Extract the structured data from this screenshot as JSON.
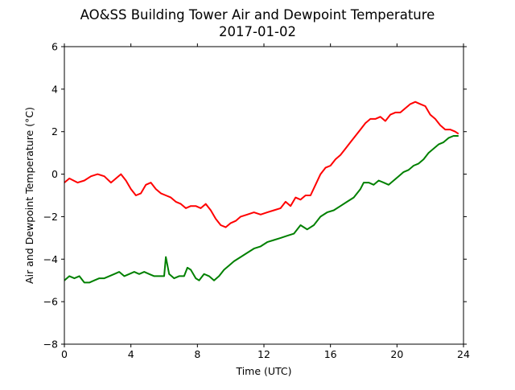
{
  "chart_data": {
    "type": "line",
    "title": "AO&SS Building Tower Air and Dewpoint Temperature",
    "subtitle": "2017-01-02",
    "xlabel": "Time (UTC)",
    "ylabel": "Air and Dewpoint Temperature (°C)",
    "xlim": [
      0,
      24
    ],
    "ylim": [
      -8,
      6
    ],
    "xticks": [
      0,
      4,
      8,
      12,
      16,
      20,
      24
    ],
    "yticks": [
      -8,
      -6,
      -4,
      -2,
      0,
      2,
      4,
      6
    ],
    "grid": false,
    "legend": "none",
    "series": [
      {
        "color": "#ff0000",
        "x": [
          0,
          0.3,
          0.8,
          1.2,
          1.6,
          2.0,
          2.4,
          2.8,
          3.1,
          3.4,
          3.7,
          4.0,
          4.3,
          4.6,
          4.9,
          5.2,
          5.5,
          5.8,
          6.1,
          6.4,
          6.7,
          7.0,
          7.3,
          7.6,
          7.9,
          8.2,
          8.5,
          8.8,
          9.1,
          9.4,
          9.7,
          10.0,
          10.3,
          10.6,
          11.0,
          11.4,
          11.8,
          12.2,
          12.6,
          13.0,
          13.3,
          13.6,
          13.9,
          14.2,
          14.5,
          14.8,
          15.1,
          15.4,
          15.7,
          16.0,
          16.3,
          16.6,
          16.9,
          17.2,
          17.5,
          17.8,
          18.1,
          18.4,
          18.7,
          19.0,
          19.3,
          19.6,
          19.9,
          20.2,
          20.5,
          20.8,
          21.1,
          21.4,
          21.7,
          22.0,
          22.3,
          22.6,
          22.9,
          23.2,
          23.5,
          23.7
        ],
        "y": [
          -0.4,
          -0.2,
          -0.4,
          -0.3,
          -0.1,
          0.0,
          -0.1,
          -0.4,
          -0.2,
          0.0,
          -0.3,
          -0.7,
          -1.0,
          -0.9,
          -0.5,
          -0.4,
          -0.7,
          -0.9,
          -1.0,
          -1.1,
          -1.3,
          -1.4,
          -1.6,
          -1.5,
          -1.5,
          -1.6,
          -1.4,
          -1.7,
          -2.1,
          -2.4,
          -2.5,
          -2.3,
          -2.2,
          -2.0,
          -1.9,
          -1.8,
          -1.9,
          -1.8,
          -1.7,
          -1.6,
          -1.3,
          -1.5,
          -1.1,
          -1.2,
          -1.0,
          -1.0,
          -0.5,
          0.0,
          0.3,
          0.4,
          0.7,
          0.9,
          1.2,
          1.5,
          1.8,
          2.1,
          2.4,
          2.6,
          2.6,
          2.7,
          2.5,
          2.8,
          2.9,
          2.9,
          3.1,
          3.3,
          3.4,
          3.3,
          3.2,
          2.8,
          2.6,
          2.3,
          2.1,
          2.1,
          2.0,
          1.9
        ]
      },
      {
        "color": "#008000",
        "x": [
          0,
          0.3,
          0.6,
          0.9,
          1.2,
          1.5,
          1.8,
          2.1,
          2.4,
          2.7,
          3.0,
          3.3,
          3.6,
          3.9,
          4.2,
          4.5,
          4.8,
          5.1,
          5.4,
          5.7,
          6.0,
          6.1,
          6.3,
          6.6,
          6.9,
          7.2,
          7.4,
          7.6,
          7.9,
          8.1,
          8.4,
          8.7,
          9.0,
          9.3,
          9.6,
          9.9,
          10.2,
          10.6,
          11.0,
          11.4,
          11.8,
          12.2,
          12.6,
          13.0,
          13.4,
          13.8,
          14.2,
          14.6,
          15.0,
          15.4,
          15.8,
          16.2,
          16.6,
          17.0,
          17.4,
          17.8,
          18.0,
          18.3,
          18.6,
          18.9,
          19.2,
          19.5,
          19.8,
          20.1,
          20.4,
          20.7,
          21.0,
          21.3,
          21.6,
          21.9,
          22.2,
          22.5,
          22.8,
          23.1,
          23.4,
          23.7
        ],
        "y": [
          -5.0,
          -4.8,
          -4.9,
          -4.8,
          -5.1,
          -5.1,
          -5.0,
          -4.9,
          -4.9,
          -4.8,
          -4.7,
          -4.6,
          -4.8,
          -4.7,
          -4.6,
          -4.7,
          -4.6,
          -4.7,
          -4.8,
          -4.8,
          -4.8,
          -3.9,
          -4.7,
          -4.9,
          -4.8,
          -4.8,
          -4.4,
          -4.5,
          -4.9,
          -5.0,
          -4.7,
          -4.8,
          -5.0,
          -4.8,
          -4.5,
          -4.3,
          -4.1,
          -3.9,
          -3.7,
          -3.5,
          -3.4,
          -3.2,
          -3.1,
          -3.0,
          -2.9,
          -2.8,
          -2.4,
          -2.6,
          -2.4,
          -2.0,
          -1.8,
          -1.7,
          -1.5,
          -1.3,
          -1.1,
          -0.7,
          -0.4,
          -0.4,
          -0.5,
          -0.3,
          -0.4,
          -0.5,
          -0.3,
          -0.1,
          0.1,
          0.2,
          0.4,
          0.5,
          0.7,
          1.0,
          1.2,
          1.4,
          1.5,
          1.7,
          1.8,
          1.8
        ]
      }
    ]
  }
}
